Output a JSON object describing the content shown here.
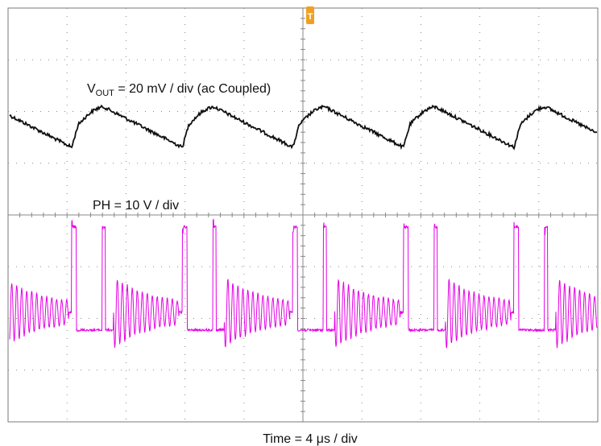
{
  "chart_data": {
    "type": "line",
    "title": "",
    "xlabel": "Time = 4 μs / div",
    "time_per_div_us": 4,
    "grid": true,
    "grid_divisions": {
      "horizontal": 10,
      "vertical": 8
    },
    "trigger_marker": "T",
    "channels": [
      {
        "name": "VOUT",
        "annotation_main": "V",
        "annotation_sub": "OUT",
        "annotation_rest": " = 20 mV / div (ac Coupled)",
        "scale_mV_per_div": 20,
        "coupling": "ac",
        "color": "#111111",
        "waveform": "sawtooth ripple",
        "ripple_pp_mV": 11,
        "period_us": 7.5
      },
      {
        "name": "PH",
        "annotation": "PH = 10 V / div",
        "scale_V_per_div": 10,
        "color": "#e600e6",
        "waveform": "switch node pulses with ringing",
        "pulse_pairs_visible": 5,
        "period_us": 7.5
      }
    ],
    "colors": {
      "grid": "#888888",
      "frame": "#7a7a7a",
      "trigger": "#f0a020"
    }
  }
}
